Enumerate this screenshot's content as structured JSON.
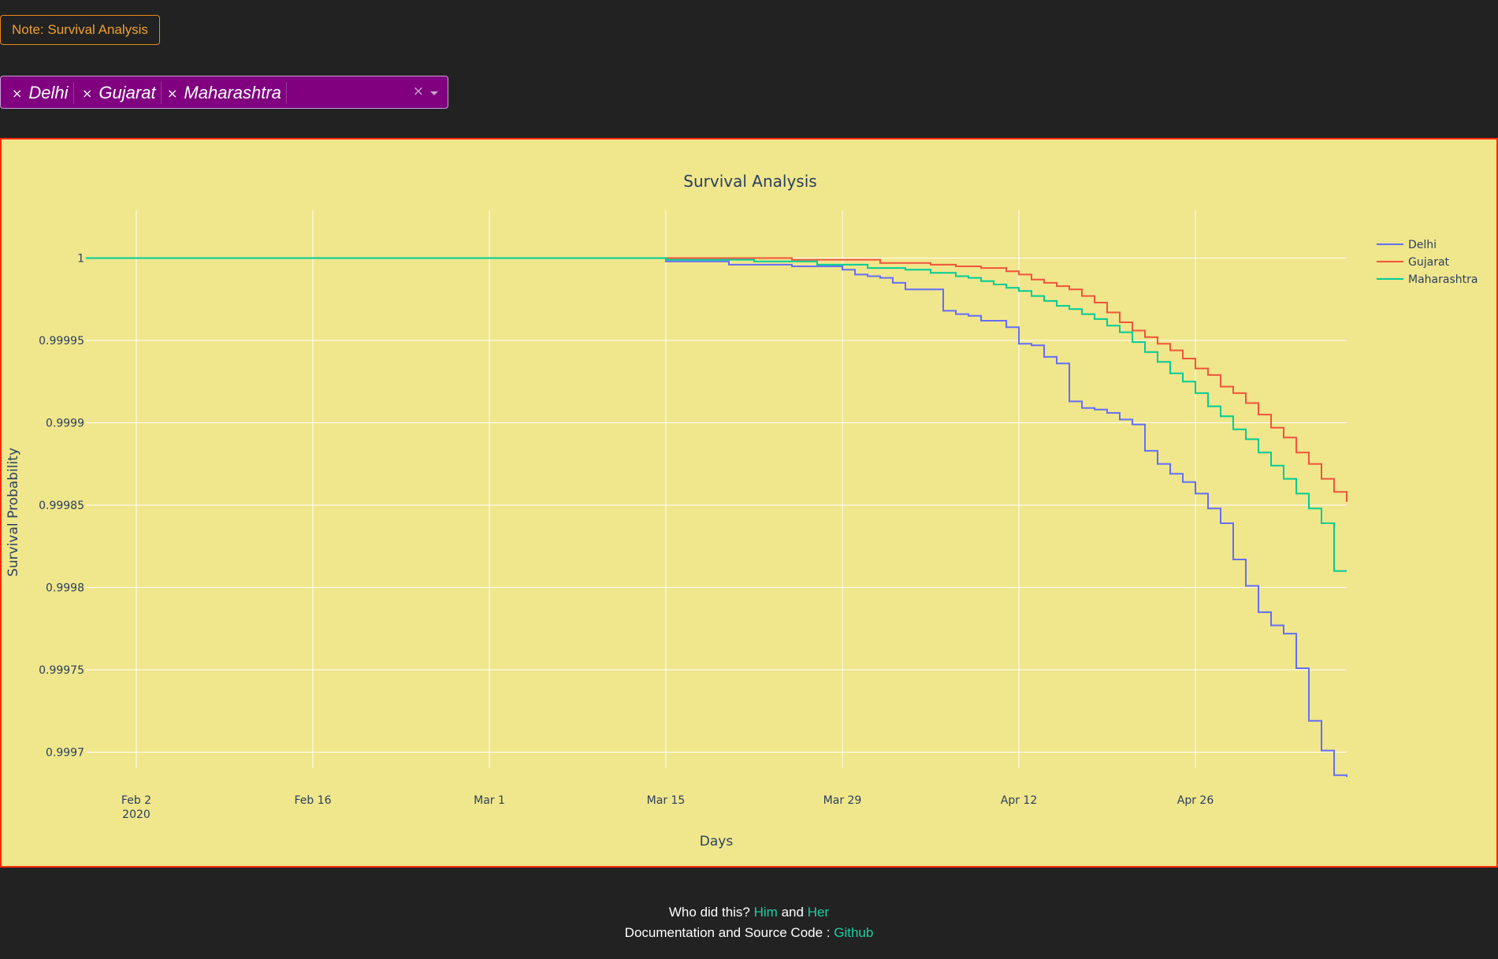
{
  "note_button": "Note: Survival Analysis",
  "dropdown": {
    "selected": [
      "Delhi",
      "Gujarat",
      "Maharashtra"
    ],
    "remove_symbol": "×",
    "clear_symbol": "×"
  },
  "colors": {
    "page_bg": "#222222",
    "chart_bg": "#f0e68c",
    "chart_border": "#ff2a00",
    "dropdown_bg": "#800080",
    "note_accent": "#f0a030",
    "link": "#1ccfa0"
  },
  "chart_data": {
    "type": "line",
    "line_shape": "step",
    "title": "Survival Analysis",
    "xlabel": "Days",
    "ylabel": "Survival Probability",
    "x_ticks": [
      "Feb 2",
      "Feb 16",
      "Mar 1",
      "Mar 15",
      "Mar 29",
      "Apr 12",
      "Apr 26"
    ],
    "x_tick_year": "2020",
    "x_range": [
      "2020-01-29",
      "2020-05-08"
    ],
    "y_ticks": [
      "1",
      "0.99995",
      "0.9999",
      "0.99985",
      "0.9998",
      "0.99975",
      "0.9997"
    ],
    "ylim": [
      0.999695,
      1.000017
    ],
    "grid": true,
    "legend_position": "top-right",
    "series": [
      {
        "name": "Delhi",
        "color": "#636efa",
        "x": [
          "2020-01-29",
          "2020-03-15",
          "2020-03-20",
          "2020-03-25",
          "2020-03-29",
          "2020-03-30",
          "2020-03-31",
          "2020-04-01",
          "2020-04-02",
          "2020-04-03",
          "2020-04-04",
          "2020-04-06",
          "2020-04-07",
          "2020-04-08",
          "2020-04-09",
          "2020-04-10",
          "2020-04-11",
          "2020-04-12",
          "2020-04-13",
          "2020-04-14",
          "2020-04-15",
          "2020-04-16",
          "2020-04-17",
          "2020-04-18",
          "2020-04-19",
          "2020-04-20",
          "2020-04-21",
          "2020-04-22",
          "2020-04-23",
          "2020-04-24",
          "2020-04-25",
          "2020-04-26",
          "2020-04-27",
          "2020-04-28",
          "2020-04-29",
          "2020-04-30",
          "2020-05-01",
          "2020-05-02",
          "2020-05-03",
          "2020-05-04",
          "2020-05-05",
          "2020-05-06",
          "2020-05-07",
          "2020-05-08"
        ],
        "y": [
          1.0,
          0.999998,
          0.999996,
          0.999995,
          0.999993,
          0.99999,
          0.999989,
          0.999988,
          0.999985,
          0.999981,
          0.999981,
          0.999968,
          0.999966,
          0.999965,
          0.999962,
          0.999962,
          0.999958,
          0.999948,
          0.999947,
          0.99994,
          0.999936,
          0.999913,
          0.999909,
          0.999908,
          0.999906,
          0.999902,
          0.999899,
          0.999883,
          0.999875,
          0.999869,
          0.999864,
          0.999857,
          0.999848,
          0.999839,
          0.999817,
          0.999801,
          0.999785,
          0.999777,
          0.999772,
          0.999751,
          0.999719,
          0.999701,
          0.999686,
          0.999685
        ]
      },
      {
        "name": "Gujarat",
        "color": "#ef553b",
        "x": [
          "2020-01-29",
          "2020-03-15",
          "2020-03-25",
          "2020-04-01",
          "2020-04-05",
          "2020-04-07",
          "2020-04-09",
          "2020-04-11",
          "2020-04-12",
          "2020-04-13",
          "2020-04-14",
          "2020-04-15",
          "2020-04-16",
          "2020-04-17",
          "2020-04-18",
          "2020-04-19",
          "2020-04-20",
          "2020-04-21",
          "2020-04-22",
          "2020-04-23",
          "2020-04-24",
          "2020-04-25",
          "2020-04-26",
          "2020-04-27",
          "2020-04-28",
          "2020-04-29",
          "2020-04-30",
          "2020-05-01",
          "2020-05-02",
          "2020-05-03",
          "2020-05-04",
          "2020-05-05",
          "2020-05-06",
          "2020-05-07",
          "2020-05-08"
        ],
        "y": [
          1.0,
          1.0,
          0.999999,
          0.999997,
          0.999996,
          0.999995,
          0.999994,
          0.999992,
          0.99999,
          0.999987,
          0.999985,
          0.999983,
          0.999981,
          0.999977,
          0.999973,
          0.999967,
          0.999961,
          0.999956,
          0.999952,
          0.999948,
          0.999944,
          0.999939,
          0.999933,
          0.999929,
          0.999922,
          0.999918,
          0.999912,
          0.999905,
          0.999897,
          0.999891,
          0.999882,
          0.999875,
          0.999866,
          0.999858,
          0.999852
        ]
      },
      {
        "name": "Maharashtra",
        "color": "#00cc96",
        "x": [
          "2020-01-29",
          "2020-03-15",
          "2020-03-22",
          "2020-03-27",
          "2020-03-31",
          "2020-04-03",
          "2020-04-05",
          "2020-04-07",
          "2020-04-08",
          "2020-04-09",
          "2020-04-10",
          "2020-04-11",
          "2020-04-12",
          "2020-04-13",
          "2020-04-14",
          "2020-04-15",
          "2020-04-16",
          "2020-04-17",
          "2020-04-18",
          "2020-04-19",
          "2020-04-20",
          "2020-04-21",
          "2020-04-22",
          "2020-04-23",
          "2020-04-24",
          "2020-04-25",
          "2020-04-26",
          "2020-04-27",
          "2020-04-28",
          "2020-04-29",
          "2020-04-30",
          "2020-05-01",
          "2020-05-02",
          "2020-05-03",
          "2020-05-04",
          "2020-05-05",
          "2020-05-06",
          "2020-05-07",
          "2020-05-08"
        ],
        "y": [
          1.0,
          0.999999,
          0.999998,
          0.999996,
          0.999994,
          0.999993,
          0.999991,
          0.999989,
          0.999988,
          0.999986,
          0.999984,
          0.999982,
          0.99998,
          0.999977,
          0.999974,
          0.999971,
          0.999969,
          0.999966,
          0.999963,
          0.999959,
          0.999955,
          0.999949,
          0.999943,
          0.999937,
          0.99993,
          0.999925,
          0.999918,
          0.99991,
          0.999904,
          0.999896,
          0.99989,
          0.999882,
          0.999874,
          0.999866,
          0.999857,
          0.999848,
          0.999839,
          0.99981,
          0.99981
        ]
      }
    ]
  },
  "footer": {
    "line1_prefix": "Who did this?",
    "link_him": "Him",
    "and_text": "and",
    "link_her": "Her",
    "line2_prefix": "Documentation and Source Code :",
    "link_github": "Github"
  }
}
